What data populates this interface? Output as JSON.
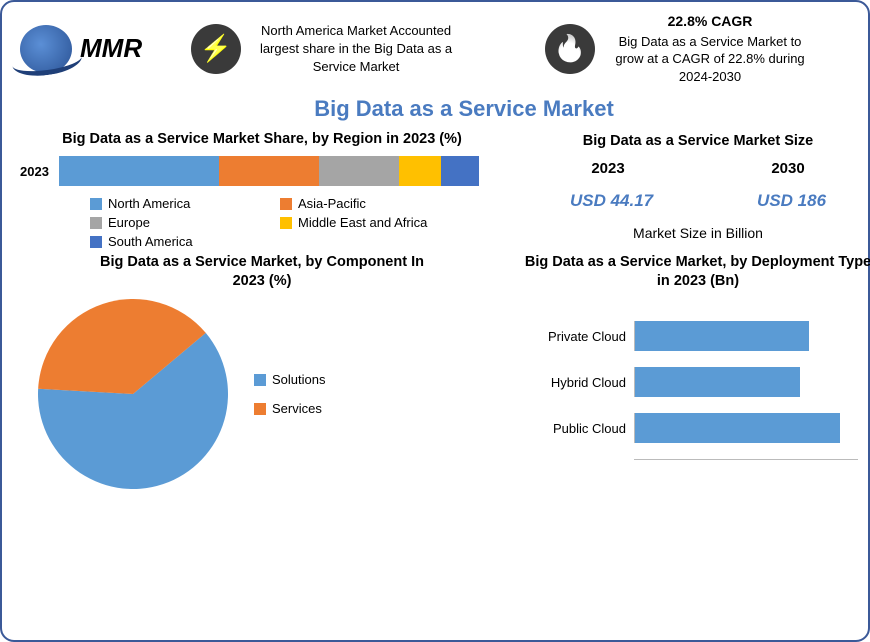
{
  "logo": {
    "text": "MMR"
  },
  "stats": [
    {
      "icon": "bolt-icon",
      "glyph": "⚡",
      "headline": "",
      "body": "North America Market Accounted largest share in the Big Data as a Service Market"
    },
    {
      "icon": "flame-icon",
      "glyph": "🔥",
      "headline": "22.8% CAGR",
      "body": "Big Data as a Service Market to grow at a CAGR of 22.8% during 2024-2030"
    }
  ],
  "main_title": "Big Data as a Service Market",
  "region_chart": {
    "type": "stacked-bar",
    "title": "Big Data as a Service Market Share, by Region in 2023 (%)",
    "row_label": "2023",
    "segments": [
      {
        "name": "North America",
        "value": 38,
        "color": "#5b9bd5"
      },
      {
        "name": "Asia-Pacific",
        "value": 24,
        "color": "#ed7d31"
      },
      {
        "name": "Europe",
        "value": 19,
        "color": "#a5a5a5"
      },
      {
        "name": "Middle East and Africa",
        "value": 10,
        "color": "#ffc000"
      },
      {
        "name": "South America",
        "value": 9,
        "color": "#4472c4"
      }
    ],
    "legend_order": [
      "North America",
      "Asia-Pacific",
      "Europe",
      "Middle East and Africa",
      "South America"
    ]
  },
  "size_block": {
    "title": "Big Data as a Service Market Size",
    "years": [
      "2023",
      "2030"
    ],
    "values": [
      "USD 44.17",
      "USD 186"
    ],
    "unit": "Market Size in Billion"
  },
  "pie_chart": {
    "type": "pie",
    "title": "Big Data as a Service Market, by Component In 2023 (%)",
    "diameter": 190,
    "slices": [
      {
        "name": "Solutions",
        "value": 62,
        "color": "#5b9bd5"
      },
      {
        "name": "Services",
        "value": 38,
        "color": "#ed7d31"
      }
    ],
    "start_angle_deg": -40
  },
  "deploy_chart": {
    "type": "bar",
    "title": "Big Data as a Service Market, by Deployment Type in 2023 (Bn)",
    "bar_color": "#5b9bd5",
    "max": 100,
    "rows": [
      {
        "label": "Private Cloud",
        "value": 78
      },
      {
        "label": "Hybrid Cloud",
        "value": 74
      },
      {
        "label": "Public Cloud",
        "value": 92
      }
    ]
  },
  "colors": {
    "accent": "#4a7bc0",
    "border": "#3b5998",
    "icon_bg": "#3a3a3a"
  }
}
